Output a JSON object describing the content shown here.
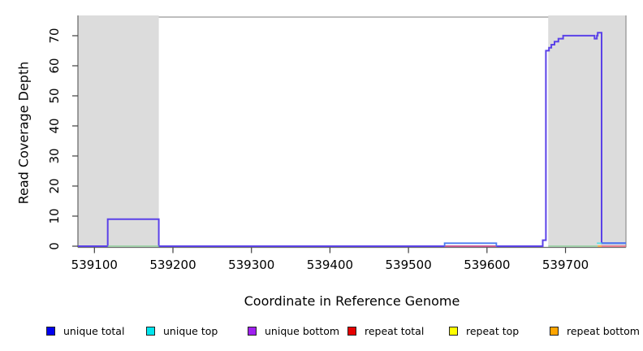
{
  "chart_data": {
    "type": "line",
    "subtype": "step-coverage",
    "title": "",
    "xlabel": "Coordinate in Reference Genome",
    "ylabel": "Read Coverage Depth",
    "xlim": [
      539079,
      539777
    ],
    "ylim": [
      0,
      76.2
    ],
    "x_ticks": [
      539100,
      539200,
      539300,
      539400,
      539500,
      539600,
      539700
    ],
    "y_ticks": [
      0,
      10,
      20,
      30,
      40,
      50,
      60,
      70
    ],
    "grid": false,
    "background": "#ffffff",
    "shaded_regions": [
      {
        "x0": 539079,
        "x1": 539182,
        "color": "#DCDCDC"
      },
      {
        "x0": 539678,
        "x1": 539777,
        "color": "#DCDCDC"
      }
    ],
    "series": [
      {
        "name": "unique-bottom-coverage",
        "color": "#5B42E8",
        "width": 2,
        "paths": [
          [
            [
              539079,
              0
            ],
            [
              539117,
              0
            ],
            [
              539117,
              9
            ],
            [
              539182,
              9
            ],
            [
              539182,
              0
            ],
            [
              539671,
              0
            ],
            [
              539671,
              2
            ],
            [
              539675,
              2
            ],
            [
              539675,
              65
            ],
            [
              539679,
              65
            ],
            [
              539679,
              66
            ],
            [
              539682,
              66
            ],
            [
              539682,
              67
            ],
            [
              539686,
              67
            ],
            [
              539686,
              68
            ],
            [
              539691,
              68
            ],
            [
              539691,
              69
            ],
            [
              539697,
              69
            ],
            [
              539697,
              70
            ],
            [
              539737,
              70
            ],
            [
              539737,
              69
            ],
            [
              539740,
              69
            ],
            [
              539740,
              70
            ],
            [
              539741,
              70
            ],
            [
              539741,
              71
            ],
            [
              539746,
              71
            ],
            [
              539746,
              1
            ],
            [
              539777,
              1
            ]
          ]
        ]
      },
      {
        "name": "repeat-total-baseline",
        "color": "#EC6278",
        "width": 1.6,
        "paths": [
          [
            [
              539546,
              0
            ],
            [
              539612,
              0
            ]
          ],
          [
            [
              539746,
              0
            ],
            [
              539777,
              0
            ]
          ]
        ]
      },
      {
        "name": "zero-coverage-guide",
        "color": "#8FCE9B",
        "width": 1.6,
        "paths": [
          [
            [
              539117,
              0
            ],
            [
              539182,
              0
            ]
          ],
          [
            [
              539678,
              0
            ],
            [
              539741,
              0
            ]
          ]
        ]
      },
      {
        "name": "repeat-bottom-tick",
        "color": "#FFA030",
        "width": 1.6,
        "paths": [
          [
            [
              539741,
              0
            ],
            [
              539746,
              0
            ]
          ]
        ]
      },
      {
        "name": "unique-top-tick",
        "color": "#50E0E6",
        "width": 1.6,
        "paths": [
          [
            [
              539740,
              1
            ],
            [
              539746,
              1
            ]
          ]
        ]
      },
      {
        "name": "unique-total-coverage",
        "color": "#4A7CF2",
        "width": 1.8,
        "paths": [
          [
            [
              539546,
              0
            ],
            [
              539546,
              1
            ],
            [
              539612,
              1
            ],
            [
              539612,
              0
            ]
          ],
          [
            [
              539746,
              1
            ],
            [
              539777,
              1
            ]
          ]
        ]
      }
    ],
    "legend": [
      {
        "label": "unique total",
        "color": "#0000F0"
      },
      {
        "label": "unique top",
        "color": "#00E5EE"
      },
      {
        "label": "unique bottom",
        "color": "#A020F0"
      },
      {
        "label": "repeat total",
        "color": "#E60000"
      },
      {
        "label": "repeat top",
        "color": "#FFFF00"
      },
      {
        "label": "repeat bottom",
        "color": "#FFA500"
      }
    ],
    "legend_position": "bottom"
  },
  "style_colors": {
    "band_gray": "#DCDCDC",
    "border_gray": "#969696",
    "axis_gray": "#6E6E6E",
    "tick_color": "#404040",
    "text_color": "#000000"
  }
}
